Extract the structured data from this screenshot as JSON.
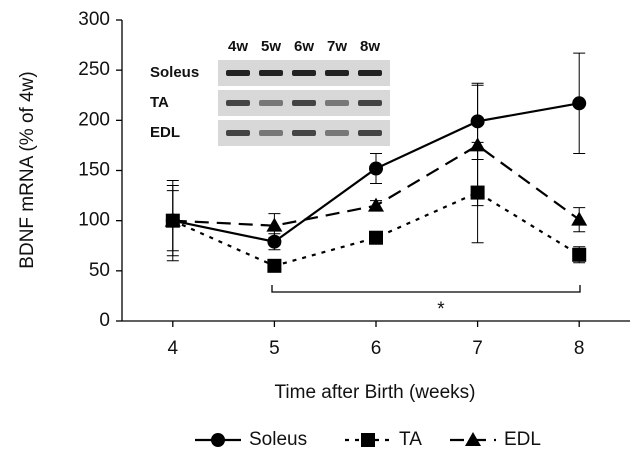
{
  "chart_data": {
    "type": "line",
    "x_label": "Time after Birth  (weeks)",
    "y_label": "BDNF mRNA (% of 4w)",
    "x": [
      4,
      5,
      6,
      7,
      8
    ],
    "xlim": [
      3.5,
      8.5
    ],
    "xticks": [
      4,
      5,
      6,
      7,
      8
    ],
    "ylim": [
      0,
      300
    ],
    "yticks": [
      0,
      50,
      100,
      150,
      200,
      250,
      300
    ],
    "series": [
      {
        "name": "Soleus",
        "color": "#000000",
        "linestyle": "solid",
        "marker": "circle",
        "values": [
          100,
          79,
          152,
          199,
          217
        ],
        "errors": [
          40,
          8,
          15,
          38,
          50
        ]
      },
      {
        "name": "TA",
        "color": "#000000",
        "linestyle": "dotted",
        "marker": "square",
        "values": [
          100,
          55,
          83,
          128,
          66
        ],
        "errors": [
          30,
          4,
          4,
          50,
          8
        ]
      },
      {
        "name": "EDL",
        "color": "#000000",
        "linestyle": "dashed",
        "marker": "triangle",
        "values": [
          100,
          95,
          115,
          175,
          101
        ],
        "errors": [
          35,
          12,
          5,
          60,
          12
        ]
      }
    ],
    "annotation": "*",
    "inset": {
      "lanes": [
        "4w",
        "5w",
        "6w",
        "7w",
        "8w"
      ],
      "rows": [
        "Soleus",
        "TA",
        "EDL"
      ]
    },
    "legend": "bottom"
  }
}
